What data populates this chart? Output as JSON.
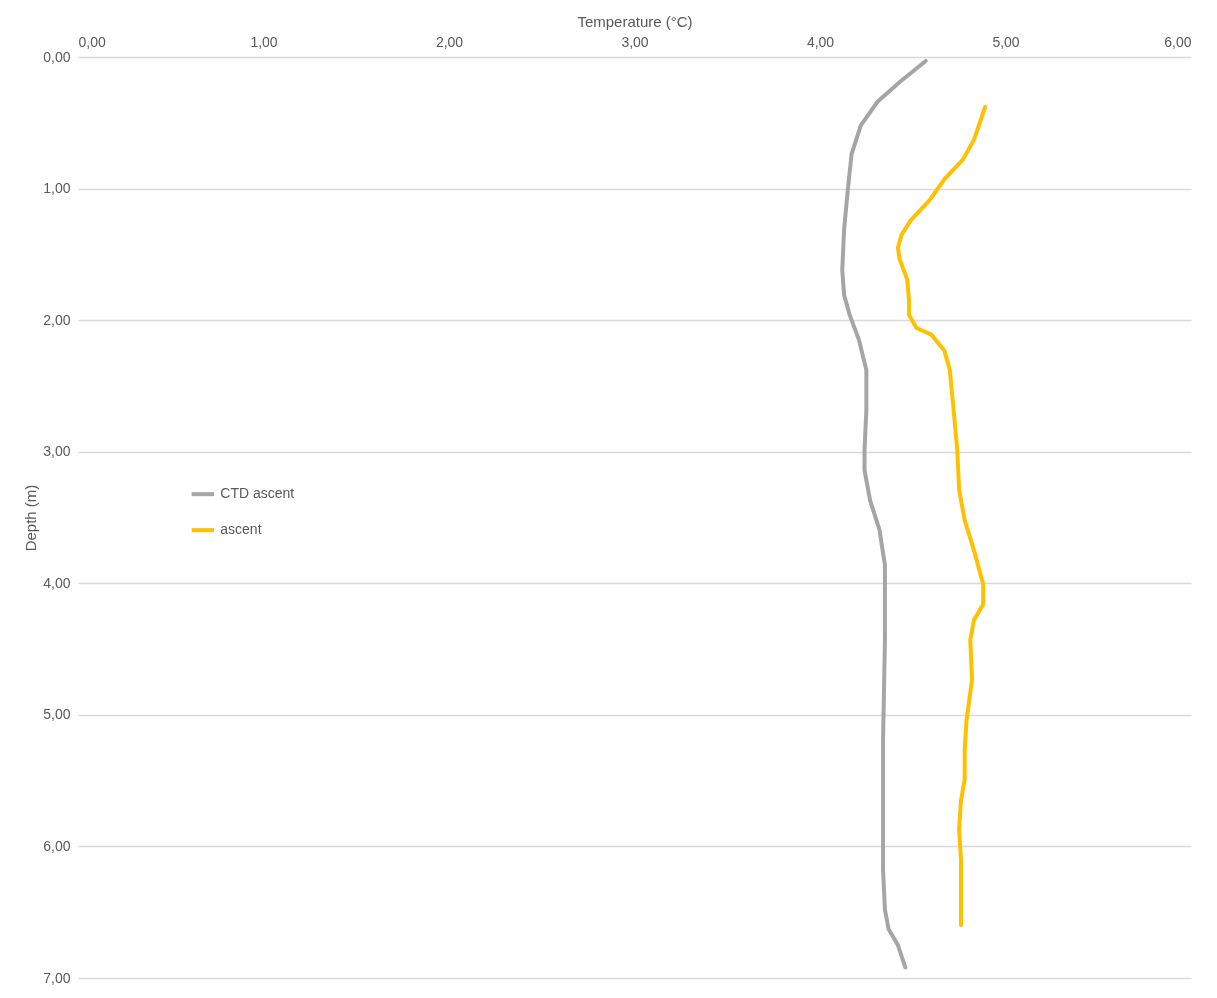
{
  "chart_data": {
    "type": "line",
    "xlabel": "Temperature  (°C)",
    "ylabel": "Depth (m)",
    "xlim": [
      0,
      6
    ],
    "xticks": [
      {
        "value": 0,
        "label": "0,00"
      },
      {
        "value": 1,
        "label": "1,00"
      },
      {
        "value": 2,
        "label": "2,00"
      },
      {
        "value": 3,
        "label": "3,00"
      },
      {
        "value": 4,
        "label": "4,00"
      },
      {
        "value": 5,
        "label": "5,00"
      },
      {
        "value": 6,
        "label": "6,00"
      }
    ],
    "ylim": [
      7,
      0
    ],
    "yticks": [
      {
        "value": 0,
        "label": "0,00"
      },
      {
        "value": 1,
        "label": "1,00"
      },
      {
        "value": 2,
        "label": "2,00"
      },
      {
        "value": 3,
        "label": "3,00"
      },
      {
        "value": 4,
        "label": "4,00"
      },
      {
        "value": 5,
        "label": "5,00"
      },
      {
        "value": 6,
        "label": "6,00"
      },
      {
        "value": 7,
        "label": "7,00"
      }
    ],
    "grid": "y",
    "legend": "left",
    "marker": "none",
    "line_style": "solid",
    "series": [
      {
        "name": "CTD ascent",
        "color": "#a5a5a5",
        "x": [
          4.57,
          4.43,
          4.31,
          4.22,
          4.17,
          4.15,
          4.13,
          4.12,
          4.13,
          4.16,
          4.21,
          4.25,
          4.25,
          4.24,
          4.24,
          4.27,
          4.32,
          4.35,
          4.35,
          4.35,
          4.34,
          4.34,
          4.34,
          4.35,
          4.37,
          4.42,
          4.46
        ],
        "values": [
          0.03,
          0.19,
          0.34,
          0.52,
          0.74,
          1.01,
          1.31,
          1.62,
          1.81,
          1.96,
          2.15,
          2.38,
          2.68,
          2.99,
          3.14,
          3.37,
          3.59,
          3.86,
          4.05,
          4.43,
          5.19,
          5.95,
          6.18,
          6.48,
          6.63,
          6.75,
          6.92
        ]
      },
      {
        "name": "ascent",
        "color": "#ffc000",
        "x": [
          4.89,
          4.83,
          4.77,
          4.67,
          4.59,
          4.49,
          4.44,
          4.42,
          4.43,
          4.47,
          4.48,
          4.48,
          4.52,
          4.6,
          4.67,
          4.7,
          4.72,
          4.74,
          4.75,
          4.78,
          4.83,
          4.88,
          4.88,
          4.83,
          4.81,
          4.82,
          4.79,
          4.78,
          4.78,
          4.76,
          4.75,
          4.76,
          4.76
        ],
        "values": [
          0.38,
          0.63,
          0.78,
          0.93,
          1.09,
          1.24,
          1.35,
          1.45,
          1.54,
          1.69,
          1.85,
          1.96,
          2.06,
          2.11,
          2.23,
          2.38,
          2.68,
          2.99,
          3.29,
          3.52,
          3.75,
          4.01,
          4.16,
          4.28,
          4.43,
          4.73,
          5.04,
          5.27,
          5.49,
          5.65,
          5.87,
          6.1,
          6.6
        ]
      }
    ]
  }
}
